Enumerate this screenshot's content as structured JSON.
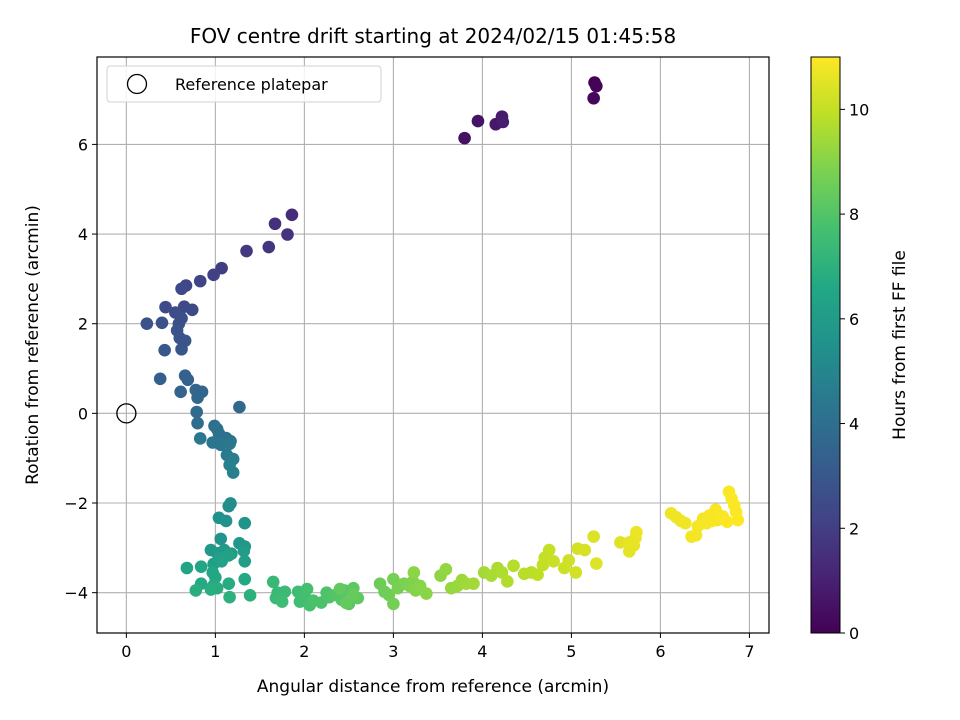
{
  "chart_data": {
    "type": "scatter",
    "title": "FOV centre drift starting at 2024/02/15 01:45:58",
    "xlabel": "Angular distance from reference (arcmin)",
    "ylabel": "Rotation from reference (arcmin)",
    "colorbar_label": "Hours from first FF file",
    "xlim": [
      -0.33,
      7.22
    ],
    "ylim": [
      -4.9,
      7.95
    ],
    "xticks": [
      "0",
      "1",
      "2",
      "3",
      "4",
      "5",
      "6",
      "7"
    ],
    "yticks": [
      "−4",
      "−2",
      "0",
      "2",
      "4",
      "6"
    ],
    "colorbar_ticks": [
      "0",
      "2",
      "4",
      "6",
      "8",
      "10"
    ],
    "colorbar_range": [
      0,
      11
    ],
    "colormap": "viridis",
    "grid": true,
    "legend": {
      "placement": "top-left",
      "label": "Reference platepar"
    },
    "reference_point": {
      "x": 0,
      "y": 0
    },
    "points": [
      [
        5.26,
        7.38,
        0.0
      ],
      [
        5.28,
        7.3,
        0.1
      ],
      [
        5.25,
        7.03,
        0.2
      ],
      [
        3.8,
        6.14,
        0.5
      ],
      [
        3.95,
        6.52,
        0.6
      ],
      [
        4.15,
        6.45,
        0.7
      ],
      [
        4.22,
        6.62,
        0.8
      ],
      [
        4.23,
        6.5,
        0.9
      ],
      [
        1.86,
        4.43,
        1.4
      ],
      [
        1.67,
        4.23,
        1.5
      ],
      [
        1.81,
        3.99,
        1.6
      ],
      [
        1.6,
        3.71,
        1.7
      ],
      [
        1.35,
        3.62,
        1.8
      ],
      [
        1.07,
        3.24,
        2.0
      ],
      [
        0.98,
        3.09,
        2.1
      ],
      [
        0.83,
        2.95,
        2.2
      ],
      [
        0.67,
        2.85,
        2.3
      ],
      [
        0.62,
        2.78,
        2.35
      ],
      [
        0.65,
        2.38,
        2.4
      ],
      [
        0.74,
        2.31,
        2.45
      ],
      [
        0.44,
        2.37,
        2.5
      ],
      [
        0.55,
        2.25,
        2.55
      ],
      [
        0.62,
        2.12,
        2.6
      ],
      [
        0.59,
        2.0,
        2.65
      ],
      [
        0.4,
        2.02,
        2.7
      ],
      [
        0.23,
        2.0,
        2.75
      ],
      [
        0.57,
        1.85,
        2.8
      ],
      [
        0.6,
        1.68,
        2.85
      ],
      [
        0.66,
        1.62,
        2.9
      ],
      [
        0.62,
        1.43,
        2.95
      ],
      [
        0.43,
        1.41,
        3.0
      ],
      [
        0.38,
        0.77,
        3.3
      ],
      [
        0.66,
        0.84,
        3.4
      ],
      [
        0.69,
        0.75,
        3.45
      ],
      [
        0.61,
        0.48,
        3.5
      ],
      [
        0.78,
        0.52,
        3.55
      ],
      [
        0.85,
        0.48,
        3.6
      ],
      [
        0.8,
        0.35,
        3.65
      ],
      [
        1.27,
        0.14,
        3.7
      ],
      [
        0.79,
        0.03,
        3.8
      ],
      [
        0.8,
        -0.22,
        3.9
      ],
      [
        0.99,
        -0.28,
        4.0
      ],
      [
        1.02,
        -0.35,
        4.05
      ],
      [
        1.04,
        -0.45,
        4.1
      ],
      [
        1.12,
        -0.55,
        4.15
      ],
      [
        1.17,
        -0.62,
        4.2
      ],
      [
        0.97,
        -0.65,
        4.25
      ],
      [
        1.06,
        -0.7,
        4.3
      ],
      [
        1.16,
        -0.68,
        4.35
      ],
      [
        0.83,
        -0.56,
        4.4
      ],
      [
        1.13,
        -0.93,
        4.5
      ],
      [
        1.2,
        -1.02,
        4.6
      ],
      [
        1.16,
        -1.15,
        4.7
      ],
      [
        1.2,
        -1.32,
        4.8
      ],
      [
        1.17,
        -2.01,
        5.3
      ],
      [
        1.15,
        -2.07,
        5.35
      ],
      [
        1.04,
        -2.33,
        5.5
      ],
      [
        1.12,
        -2.4,
        5.55
      ],
      [
        1.33,
        -2.45,
        5.6
      ],
      [
        1.06,
        -2.8,
        5.7
      ],
      [
        1.27,
        -2.9,
        5.75
      ],
      [
        1.33,
        -2.97,
        5.8
      ],
      [
        0.95,
        -3.05,
        5.85
      ],
      [
        1.02,
        -3.12,
        5.9
      ],
      [
        1.1,
        -3.05,
        5.95
      ],
      [
        1.18,
        -3.13,
        6.0
      ],
      [
        1.32,
        -3.07,
        6.05
      ],
      [
        1.33,
        -3.3,
        6.1
      ],
      [
        1.05,
        -3.23,
        6.15
      ],
      [
        0.98,
        -3.36,
        6.2
      ],
      [
        1.15,
        -3.17,
        6.25
      ],
      [
        1.07,
        -3.3,
        6.3
      ],
      [
        0.68,
        -3.45,
        6.4
      ],
      [
        0.84,
        -3.42,
        6.45
      ],
      [
        0.97,
        -3.55,
        6.5
      ],
      [
        1.0,
        -3.66,
        6.55
      ],
      [
        1.33,
        -3.7,
        6.6
      ],
      [
        0.84,
        -3.8,
        6.65
      ],
      [
        0.98,
        -3.84,
        6.7
      ],
      [
        1.15,
        -3.8,
        6.75
      ],
      [
        1.02,
        -3.9,
        6.8
      ],
      [
        0.95,
        -3.93,
        6.85
      ],
      [
        0.78,
        -3.95,
        6.9
      ],
      [
        1.16,
        -4.1,
        6.95
      ],
      [
        1.39,
        -4.06,
        7.0
      ],
      [
        1.65,
        -3.76,
        7.3
      ],
      [
        1.7,
        -4.0,
        7.35
      ],
      [
        1.78,
        -3.98,
        7.4
      ],
      [
        1.68,
        -4.12,
        7.45
      ],
      [
        1.75,
        -4.2,
        7.5
      ],
      [
        1.93,
        -3.98,
        7.55
      ],
      [
        1.95,
        -4.2,
        7.6
      ],
      [
        2.0,
        -4.05,
        7.65
      ],
      [
        2.03,
        -3.92,
        7.7
      ],
      [
        2.06,
        -4.28,
        7.75
      ],
      [
        2.1,
        -4.18,
        7.8
      ],
      [
        2.19,
        -4.22,
        7.85
      ],
      [
        2.25,
        -4.0,
        7.9
      ],
      [
        2.28,
        -4.1,
        7.95
      ],
      [
        2.35,
        -4.05,
        8.0
      ],
      [
        2.42,
        -4.16,
        8.05
      ],
      [
        2.45,
        -3.95,
        8.1
      ],
      [
        2.5,
        -4.25,
        8.15
      ],
      [
        2.55,
        -3.9,
        8.2
      ],
      [
        2.6,
        -4.12,
        8.25
      ],
      [
        2.4,
        -3.92,
        8.3
      ],
      [
        2.47,
        -4.23,
        8.35
      ],
      [
        2.55,
        -4.05,
        8.4
      ],
      [
        2.85,
        -3.8,
        8.5
      ],
      [
        2.9,
        -3.98,
        8.55
      ],
      [
        2.95,
        -4.05,
        8.6
      ],
      [
        3.0,
        -4.25,
        8.65
      ],
      [
        3.0,
        -3.7,
        8.7
      ],
      [
        3.05,
        -3.9,
        8.75
      ],
      [
        3.12,
        -3.8,
        8.8
      ],
      [
        3.18,
        -3.85,
        8.85
      ],
      [
        3.22,
        -3.75,
        8.9
      ],
      [
        3.25,
        -3.95,
        8.95
      ],
      [
        3.3,
        -3.85,
        9.0
      ],
      [
        3.37,
        -4.02,
        9.05
      ],
      [
        3.23,
        -3.55,
        9.1
      ],
      [
        3.53,
        -3.62,
        9.15
      ],
      [
        3.59,
        -3.48,
        9.2
      ],
      [
        3.65,
        -3.9,
        9.25
      ],
      [
        3.72,
        -3.85,
        9.3
      ],
      [
        3.77,
        -3.72,
        9.35
      ],
      [
        3.82,
        -3.8,
        9.4
      ],
      [
        3.9,
        -3.8,
        9.45
      ],
      [
        4.02,
        -3.55,
        9.5
      ],
      [
        4.1,
        -3.62,
        9.55
      ],
      [
        4.17,
        -3.45,
        9.6
      ],
      [
        4.22,
        -3.55,
        9.65
      ],
      [
        4.28,
        -3.75,
        9.7
      ],
      [
        4.35,
        -3.4,
        9.75
      ],
      [
        4.47,
        -3.58,
        9.8
      ],
      [
        4.55,
        -3.55,
        9.85
      ],
      [
        4.62,
        -3.6,
        9.9
      ],
      [
        4.68,
        -3.38,
        9.95
      ],
      [
        4.7,
        -3.22,
        10.0
      ],
      [
        4.75,
        -3.05,
        10.05
      ],
      [
        4.8,
        -3.3,
        10.1
      ],
      [
        4.92,
        -3.45,
        10.15
      ],
      [
        4.97,
        -3.28,
        10.2
      ],
      [
        5.05,
        -3.55,
        10.25
      ],
      [
        5.07,
        -3.02,
        10.3
      ],
      [
        5.15,
        -3.05,
        10.35
      ],
      [
        5.25,
        -2.75,
        10.4
      ],
      [
        5.28,
        -3.35,
        10.45
      ],
      [
        5.55,
        -2.88,
        10.5
      ],
      [
        5.65,
        -3.08,
        10.55
      ],
      [
        5.7,
        -2.95,
        10.6
      ],
      [
        5.72,
        -2.78,
        10.65
      ],
      [
        5.73,
        -2.65,
        10.7
      ],
      [
        5.65,
        -2.88,
        10.62
      ],
      [
        6.12,
        -2.23,
        10.72
      ],
      [
        6.18,
        -2.32,
        10.75
      ],
      [
        6.23,
        -2.4,
        10.78
      ],
      [
        6.28,
        -2.45,
        10.8
      ],
      [
        6.35,
        -2.75,
        10.82
      ],
      [
        6.4,
        -2.72,
        10.84
      ],
      [
        6.42,
        -2.52,
        10.86
      ],
      [
        6.48,
        -2.35,
        10.87
      ],
      [
        6.52,
        -2.45,
        10.88
      ],
      [
        6.55,
        -2.28,
        10.89
      ],
      [
        6.58,
        -2.4,
        10.9
      ],
      [
        6.62,
        -2.15,
        10.91
      ],
      [
        6.64,
        -2.38,
        10.92
      ],
      [
        6.7,
        -2.3,
        10.93
      ],
      [
        6.77,
        -1.75,
        10.94
      ],
      [
        6.8,
        -1.9,
        10.95
      ],
      [
        6.83,
        -2.05,
        10.96
      ],
      [
        6.85,
        -2.2,
        10.97
      ],
      [
        6.87,
        -2.38,
        10.98
      ],
      [
        6.75,
        -2.42,
        10.99
      ]
    ]
  }
}
